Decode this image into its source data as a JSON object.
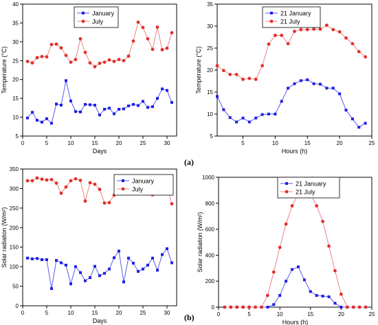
{
  "figure": {
    "caption_a": "(a)",
    "caption_b": "(b)"
  },
  "colors": {
    "january": "#1f1fe6",
    "july": "#e0302a",
    "july_line": "#f08080",
    "jan_line": "#5a5af0"
  },
  "chart_data": [
    {
      "type": "line",
      "xlabel": "Days",
      "ylabel": "Temperature (°C)",
      "xlim": [
        0,
        32
      ],
      "ylim": [
        5,
        40
      ],
      "xticks": [
        0,
        5,
        10,
        15,
        20,
        25,
        30
      ],
      "yticks": [
        5,
        10,
        15,
        20,
        25,
        30,
        35,
        40
      ],
      "legend_position": "top-center",
      "x": [
        1,
        2,
        3,
        4,
        5,
        6,
        7,
        8,
        9,
        10,
        11,
        12,
        13,
        14,
        15,
        16,
        17,
        18,
        19,
        20,
        21,
        22,
        23,
        24,
        25,
        26,
        27,
        28,
        29,
        30,
        31
      ],
      "series": [
        {
          "name": "January",
          "marker": "square",
          "values": [
            9.8,
            11.3,
            9.2,
            8.7,
            9.6,
            8.4,
            13.5,
            13.2,
            19.7,
            14.3,
            11.5,
            11.4,
            13.4,
            13.3,
            13.2,
            10.6,
            12.1,
            12.4,
            10.9,
            12.1,
            12.2,
            13.0,
            13.4,
            13.1,
            14.2,
            12.6,
            12.8,
            15.0,
            17.5,
            17.1,
            13.9
          ]
        },
        {
          "name": "July",
          "marker": "circle",
          "values": [
            24.8,
            24.4,
            25.8,
            26.1,
            26.0,
            29.3,
            29.4,
            28.4,
            26.4,
            24.6,
            25.3,
            30.8,
            27.2,
            24.4,
            23.4,
            24.3,
            24.6,
            25.2,
            24.8,
            25.3,
            25.0,
            26.2,
            30.2,
            35.2,
            33.8,
            30.8,
            28.0,
            33.9,
            27.9,
            28.3,
            32.4
          ]
        }
      ]
    },
    {
      "type": "line",
      "xlabel": "Hours (h)",
      "ylabel": "Temperature (°C)",
      "xlim": [
        1,
        25
      ],
      "ylim": [
        5,
        35
      ],
      "xticks": [
        5,
        10,
        15,
        20,
        25
      ],
      "yticks": [
        5,
        10,
        15,
        20,
        25,
        30,
        35
      ],
      "legend_position": "top-center",
      "x": [
        1,
        2,
        3,
        4,
        5,
        6,
        7,
        8,
        9,
        10,
        11,
        12,
        13,
        14,
        15,
        16,
        17,
        18,
        19,
        20,
        21,
        22,
        23,
        24
      ],
      "series": [
        {
          "name": "21 January",
          "marker": "square",
          "values": [
            14.0,
            11.0,
            9.2,
            8.2,
            9.1,
            8.2,
            9.1,
            9.9,
            10.0,
            10.0,
            12.9,
            15.9,
            16.9,
            17.6,
            17.8,
            16.9,
            16.8,
            15.9,
            15.9,
            14.6,
            10.9,
            8.9,
            7.0,
            7.9
          ]
        },
        {
          "name": "21 July",
          "marker": "circle",
          "values": [
            21.0,
            19.9,
            19.0,
            19.0,
            17.9,
            18.1,
            17.9,
            21.0,
            25.9,
            27.9,
            27.9,
            26.0,
            28.8,
            29.2,
            29.2,
            29.3,
            29.3,
            30.2,
            29.2,
            28.7,
            27.3,
            26.0,
            24.2,
            23.0
          ]
        }
      ]
    },
    {
      "type": "line",
      "xlabel": "Days",
      "ylabel": "Solar radiation (W/m²)",
      "xlim": [
        0,
        32
      ],
      "ylim": [
        0,
        350
      ],
      "xticks": [
        0,
        5,
        10,
        15,
        20,
        25,
        30
      ],
      "yticks": [
        0,
        50,
        100,
        150,
        200,
        250,
        300,
        350
      ],
      "legend_position": "top-right",
      "x": [
        1,
        2,
        3,
        4,
        5,
        6,
        7,
        8,
        9,
        10,
        11,
        12,
        13,
        14,
        15,
        16,
        17,
        18,
        19,
        20,
        21,
        22,
        23,
        24,
        25,
        26,
        27,
        28,
        29,
        30,
        31
      ],
      "series": [
        {
          "name": "January",
          "marker": "square",
          "values": [
            122,
            120,
            121,
            118,
            118,
            44,
            116,
            110,
            104,
            56,
            100,
            85,
            64,
            72,
            101,
            77,
            83,
            94,
            123,
            140,
            61,
            122,
            109,
            88,
            94,
            104,
            122,
            91,
            131,
            146,
            110
          ]
        },
        {
          "name": "July",
          "marker": "circle",
          "values": [
            320,
            320,
            327,
            324,
            322,
            323,
            314,
            288,
            304,
            320,
            325,
            321,
            268,
            315,
            311,
            298,
            263,
            264,
            283,
            302,
            313,
            311,
            318,
            319,
            299,
            295,
            284,
            315,
            309,
            303,
            261
          ]
        }
      ]
    },
    {
      "type": "line",
      "xlabel": "Hours (h)",
      "ylabel": "Solar radiation (W/m²)",
      "xlim": [
        0,
        25
      ],
      "ylim": [
        0,
        1000
      ],
      "xticks": [
        0,
        5,
        10,
        15,
        20,
        25
      ],
      "yticks": [
        0,
        200,
        400,
        600,
        800,
        1000
      ],
      "legend_position": "top-center",
      "x": [
        1,
        2,
        3,
        4,
        5,
        6,
        7,
        8,
        9,
        10,
        11,
        12,
        13,
        14,
        15,
        16,
        17,
        18,
        19,
        20,
        21,
        22,
        23,
        24
      ],
      "series": [
        {
          "name": "21 January",
          "marker": "square",
          "values": [
            0,
            0,
            0,
            0,
            0,
            0,
            0,
            0,
            20,
            90,
            200,
            290,
            310,
            210,
            120,
            90,
            85,
            80,
            30,
            0,
            0,
            0,
            0,
            0
          ]
        },
        {
          "name": "21 July",
          "marker": "circle",
          "values": [
            0,
            0,
            0,
            0,
            0,
            0,
            0,
            90,
            270,
            460,
            640,
            780,
            870,
            900,
            870,
            780,
            660,
            470,
            280,
            100,
            0,
            0,
            0,
            0
          ]
        }
      ]
    }
  ]
}
